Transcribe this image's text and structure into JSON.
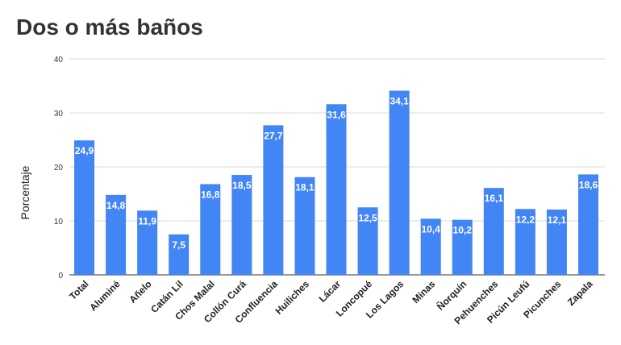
{
  "chart_data": {
    "type": "bar",
    "title": "Dos o más baños",
    "xlabel": "",
    "ylabel": "Porcentaje",
    "ylim": [
      0,
      40
    ],
    "yticks": [
      "0",
      "10",
      "20",
      "30",
      "40"
    ],
    "grid": true,
    "bar_color": "#4285f4",
    "categories": [
      "Total",
      "Aluminé",
      "Añelo",
      "Catán Lil",
      "Chos Malal",
      "Collón Curá",
      "Confluencia",
      "Huiliches",
      "Lácar",
      "Loncopué",
      "Los Lagos",
      "Minas",
      "Ñorquín",
      "Pehuenches",
      "Picún Leufú",
      "Picunches",
      "Zapala"
    ],
    "values": [
      24.9,
      14.8,
      11.9,
      7.5,
      16.8,
      18.5,
      27.7,
      18.1,
      31.6,
      12.5,
      34.1,
      10.4,
      10.2,
      16.1,
      12.2,
      12.1,
      18.6
    ],
    "data_labels": [
      "24,9",
      "14,8",
      "11,9",
      "7,5",
      "16,8",
      "18,5",
      "27,7",
      "18,1",
      "31,6",
      "12,5",
      "34,1",
      "10,4",
      "10,2",
      "16,1",
      "12,2",
      "12,1",
      "18,6"
    ]
  }
}
